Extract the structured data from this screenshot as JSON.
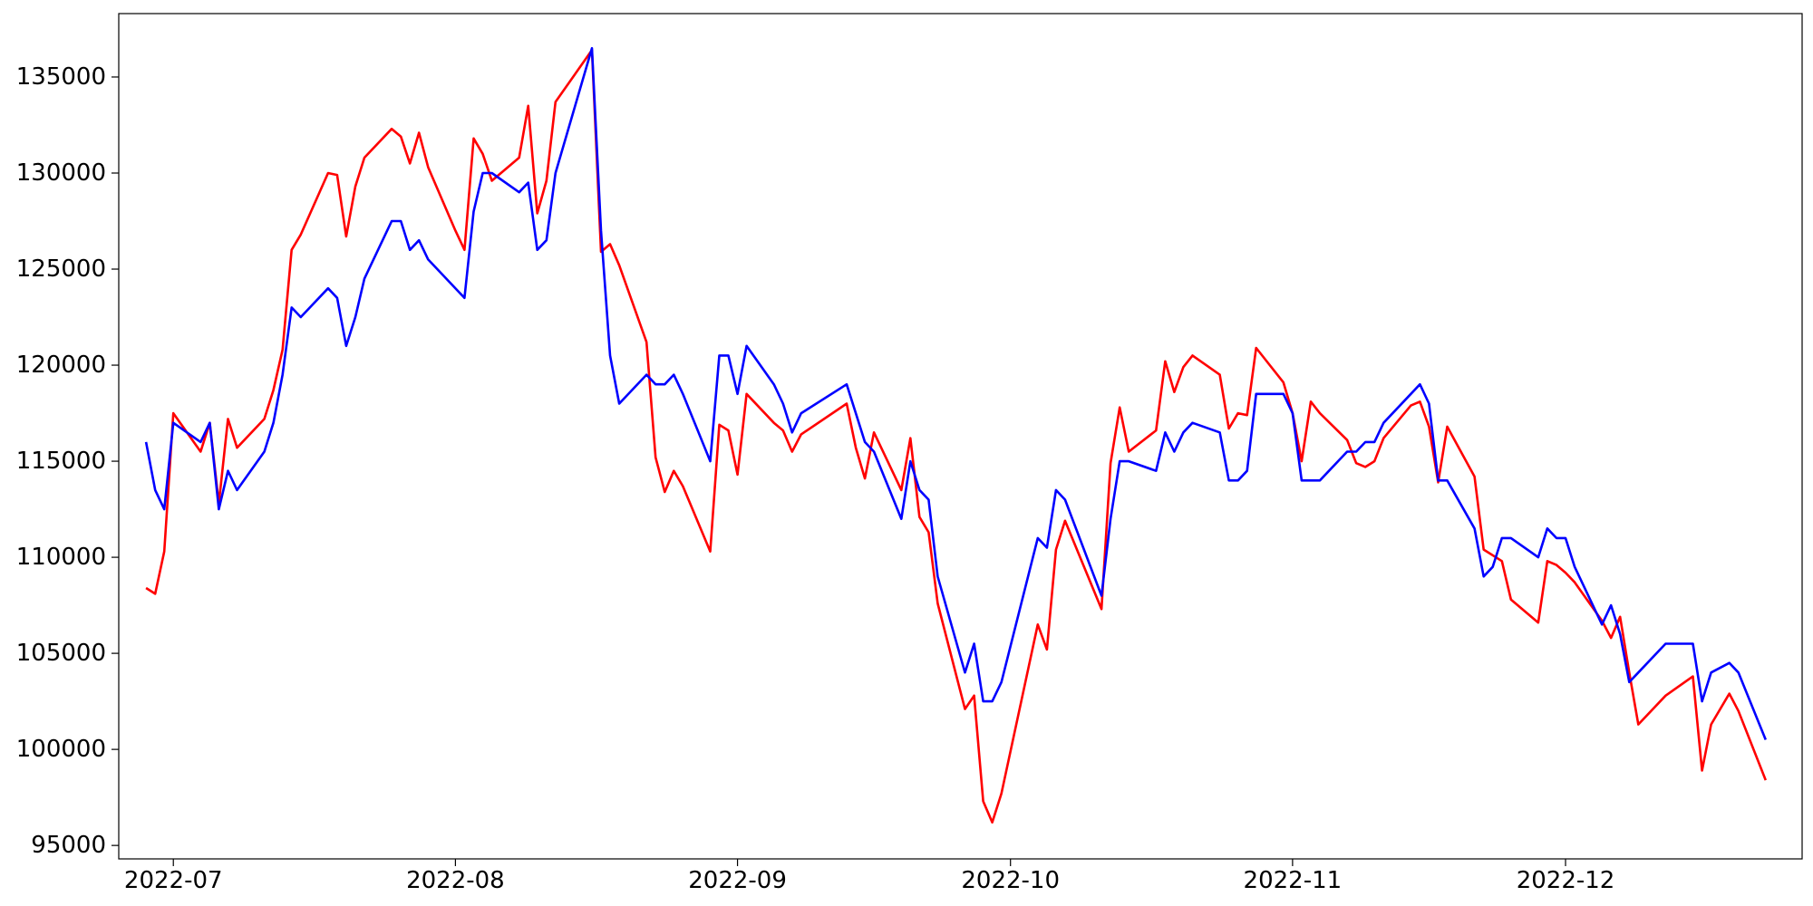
{
  "chart_data": {
    "type": "line",
    "title": "",
    "xlabel": "",
    "ylabel": "",
    "x_ticks": [
      {
        "label": "2022-07",
        "date": "2022-07-01"
      },
      {
        "label": "2022-08",
        "date": "2022-08-01"
      },
      {
        "label": "2022-09",
        "date": "2022-09-01"
      },
      {
        "label": "2022-10",
        "date": "2022-10-01"
      },
      {
        "label": "2022-11",
        "date": "2022-11-01"
      },
      {
        "label": "2022-12",
        "date": "2022-12-01"
      }
    ],
    "y_ticks": [
      95000,
      100000,
      105000,
      110000,
      115000,
      120000,
      125000,
      130000,
      135000
    ],
    "xlim": [
      "2022-06-25",
      "2022-12-27"
    ],
    "ylim": [
      94300,
      138300
    ],
    "grid": false,
    "series": [
      {
        "color": "#ff0000",
        "points": [
          [
            "2022-06-28",
            108400
          ],
          [
            "2022-06-29",
            108100
          ],
          [
            "2022-06-30",
            110300
          ],
          [
            "2022-07-01",
            117500
          ],
          [
            "2022-07-04",
            115500
          ],
          [
            "2022-07-05",
            117000
          ],
          [
            "2022-07-06",
            112800
          ],
          [
            "2022-07-07",
            117200
          ],
          [
            "2022-07-08",
            115700
          ],
          [
            "2022-07-11",
            117200
          ],
          [
            "2022-07-12",
            118700
          ],
          [
            "2022-07-13",
            120800
          ],
          [
            "2022-07-14",
            126000
          ],
          [
            "2022-07-15",
            126800
          ],
          [
            "2022-07-18",
            130000
          ],
          [
            "2022-07-19",
            129900
          ],
          [
            "2022-07-20",
            126700
          ],
          [
            "2022-07-21",
            129300
          ],
          [
            "2022-07-22",
            130800
          ],
          [
            "2022-07-25",
            132300
          ],
          [
            "2022-07-26",
            131900
          ],
          [
            "2022-07-27",
            130500
          ],
          [
            "2022-07-28",
            132100
          ],
          [
            "2022-07-29",
            130300
          ],
          [
            "2022-08-01",
            127000
          ],
          [
            "2022-08-02",
            126000
          ],
          [
            "2022-08-03",
            131800
          ],
          [
            "2022-08-04",
            131000
          ],
          [
            "2022-08-05",
            129600
          ],
          [
            "2022-08-08",
            130800
          ],
          [
            "2022-08-09",
            133500
          ],
          [
            "2022-08-10",
            127900
          ],
          [
            "2022-08-11",
            129600
          ],
          [
            "2022-08-12",
            133700
          ],
          [
            "2022-08-16",
            136400
          ],
          [
            "2022-08-17",
            125900
          ],
          [
            "2022-08-18",
            126300
          ],
          [
            "2022-08-19",
            125200
          ],
          [
            "2022-08-22",
            121200
          ],
          [
            "2022-08-23",
            115200
          ],
          [
            "2022-08-24",
            113400
          ],
          [
            "2022-08-25",
            114500
          ],
          [
            "2022-08-26",
            113700
          ],
          [
            "2022-08-29",
            110300
          ],
          [
            "2022-08-30",
            116900
          ],
          [
            "2022-08-31",
            116600
          ],
          [
            "2022-09-01",
            114300
          ],
          [
            "2022-09-02",
            118500
          ],
          [
            "2022-09-05",
            117000
          ],
          [
            "2022-09-06",
            116600
          ],
          [
            "2022-09-07",
            115500
          ],
          [
            "2022-09-08",
            116400
          ],
          [
            "2022-09-13",
            118000
          ],
          [
            "2022-09-14",
            115700
          ],
          [
            "2022-09-15",
            114100
          ],
          [
            "2022-09-16",
            116500
          ],
          [
            "2022-09-19",
            113500
          ],
          [
            "2022-09-20",
            116200
          ],
          [
            "2022-09-21",
            112100
          ],
          [
            "2022-09-22",
            111300
          ],
          [
            "2022-09-23",
            107600
          ],
          [
            "2022-09-26",
            102100
          ],
          [
            "2022-09-27",
            102800
          ],
          [
            "2022-09-28",
            97300
          ],
          [
            "2022-09-29",
            96200
          ],
          [
            "2022-09-30",
            97700
          ],
          [
            "2022-10-04",
            106500
          ],
          [
            "2022-10-05",
            105200
          ],
          [
            "2022-10-06",
            110400
          ],
          [
            "2022-10-07",
            111900
          ],
          [
            "2022-10-11",
            107300
          ],
          [
            "2022-10-12",
            114900
          ],
          [
            "2022-10-13",
            117800
          ],
          [
            "2022-10-14",
            115500
          ],
          [
            "2022-10-17",
            116600
          ],
          [
            "2022-10-18",
            120200
          ],
          [
            "2022-10-19",
            118600
          ],
          [
            "2022-10-20",
            119900
          ],
          [
            "2022-10-21",
            120500
          ],
          [
            "2022-10-24",
            119500
          ],
          [
            "2022-10-25",
            116700
          ],
          [
            "2022-10-26",
            117500
          ],
          [
            "2022-10-27",
            117400
          ],
          [
            "2022-10-28",
            120900
          ],
          [
            "2022-10-31",
            119100
          ],
          [
            "2022-11-01",
            117500
          ],
          [
            "2022-11-02",
            115000
          ],
          [
            "2022-11-03",
            118100
          ],
          [
            "2022-11-04",
            117500
          ],
          [
            "2022-11-07",
            116100
          ],
          [
            "2022-11-08",
            114900
          ],
          [
            "2022-11-09",
            114700
          ],
          [
            "2022-11-10",
            115000
          ],
          [
            "2022-11-11",
            116200
          ],
          [
            "2022-11-14",
            117900
          ],
          [
            "2022-11-15",
            118100
          ],
          [
            "2022-11-16",
            116800
          ],
          [
            "2022-11-17",
            113900
          ],
          [
            "2022-11-18",
            116800
          ],
          [
            "2022-11-21",
            114200
          ],
          [
            "2022-11-22",
            110400
          ],
          [
            "2022-11-24",
            109800
          ],
          [
            "2022-11-25",
            107800
          ],
          [
            "2022-11-28",
            106600
          ],
          [
            "2022-11-29",
            109800
          ],
          [
            "2022-11-30",
            109600
          ],
          [
            "2022-12-01",
            109200
          ],
          [
            "2022-12-02",
            108700
          ],
          [
            "2022-12-05",
            106700
          ],
          [
            "2022-12-06",
            105800
          ],
          [
            "2022-12-07",
            106900
          ],
          [
            "2022-12-08",
            104000
          ],
          [
            "2022-12-09",
            101300
          ],
          [
            "2022-12-12",
            102800
          ],
          [
            "2022-12-15",
            103800
          ],
          [
            "2022-12-16",
            98900
          ],
          [
            "2022-12-17",
            101300
          ],
          [
            "2022-12-19",
            102900
          ],
          [
            "2022-12-20",
            102000
          ],
          [
            "2022-12-23",
            98400
          ]
        ]
      },
      {
        "color": "#0000ff",
        "points": [
          [
            "2022-06-28",
            116000
          ],
          [
            "2022-06-29",
            113500
          ],
          [
            "2022-06-30",
            112500
          ],
          [
            "2022-07-01",
            117000
          ],
          [
            "2022-07-04",
            116000
          ],
          [
            "2022-07-05",
            117000
          ],
          [
            "2022-07-06",
            112500
          ],
          [
            "2022-07-07",
            114500
          ],
          [
            "2022-07-08",
            113500
          ],
          [
            "2022-07-11",
            115500
          ],
          [
            "2022-07-12",
            117000
          ],
          [
            "2022-07-13",
            119500
          ],
          [
            "2022-07-14",
            123000
          ],
          [
            "2022-07-15",
            122500
          ],
          [
            "2022-07-18",
            124000
          ],
          [
            "2022-07-19",
            123500
          ],
          [
            "2022-07-20",
            121000
          ],
          [
            "2022-07-21",
            122500
          ],
          [
            "2022-07-22",
            124500
          ],
          [
            "2022-07-25",
            127500
          ],
          [
            "2022-07-26",
            127500
          ],
          [
            "2022-07-27",
            126000
          ],
          [
            "2022-07-28",
            126500
          ],
          [
            "2022-07-29",
            125500
          ],
          [
            "2022-08-02",
            123500
          ],
          [
            "2022-08-03",
            128000
          ],
          [
            "2022-08-04",
            130000
          ],
          [
            "2022-08-05",
            130000
          ],
          [
            "2022-08-08",
            129000
          ],
          [
            "2022-08-09",
            129500
          ],
          [
            "2022-08-10",
            126000
          ],
          [
            "2022-08-11",
            126500
          ],
          [
            "2022-08-12",
            130000
          ],
          [
            "2022-08-16",
            136500
          ],
          [
            "2022-08-17",
            127000
          ],
          [
            "2022-08-18",
            120500
          ],
          [
            "2022-08-19",
            118000
          ],
          [
            "2022-08-22",
            119500
          ],
          [
            "2022-08-23",
            119000
          ],
          [
            "2022-08-24",
            119000
          ],
          [
            "2022-08-25",
            119500
          ],
          [
            "2022-08-26",
            118500
          ],
          [
            "2022-08-29",
            115000
          ],
          [
            "2022-08-30",
            120500
          ],
          [
            "2022-08-31",
            120500
          ],
          [
            "2022-09-01",
            118500
          ],
          [
            "2022-09-02",
            121000
          ],
          [
            "2022-09-05",
            119000
          ],
          [
            "2022-09-06",
            118000
          ],
          [
            "2022-09-07",
            116500
          ],
          [
            "2022-09-08",
            117500
          ],
          [
            "2022-09-13",
            119000
          ],
          [
            "2022-09-14",
            117500
          ],
          [
            "2022-09-15",
            116000
          ],
          [
            "2022-09-16",
            115500
          ],
          [
            "2022-09-19",
            112000
          ],
          [
            "2022-09-20",
            115000
          ],
          [
            "2022-09-21",
            113500
          ],
          [
            "2022-09-22",
            113000
          ],
          [
            "2022-09-23",
            109000
          ],
          [
            "2022-09-26",
            104000
          ],
          [
            "2022-09-27",
            105500
          ],
          [
            "2022-09-28",
            102500
          ],
          [
            "2022-09-29",
            102500
          ],
          [
            "2022-09-30",
            103500
          ],
          [
            "2022-10-04",
            111000
          ],
          [
            "2022-10-05",
            110500
          ],
          [
            "2022-10-06",
            113500
          ],
          [
            "2022-10-07",
            113000
          ],
          [
            "2022-10-11",
            108000
          ],
          [
            "2022-10-12",
            112000
          ],
          [
            "2022-10-13",
            115000
          ],
          [
            "2022-10-14",
            115000
          ],
          [
            "2022-10-17",
            114500
          ],
          [
            "2022-10-18",
            116500
          ],
          [
            "2022-10-19",
            115500
          ],
          [
            "2022-10-20",
            116500
          ],
          [
            "2022-10-21",
            117000
          ],
          [
            "2022-10-24",
            116500
          ],
          [
            "2022-10-25",
            114000
          ],
          [
            "2022-10-26",
            114000
          ],
          [
            "2022-10-27",
            114500
          ],
          [
            "2022-10-28",
            118500
          ],
          [
            "2022-10-31",
            118500
          ],
          [
            "2022-11-01",
            117500
          ],
          [
            "2022-11-02",
            114000
          ],
          [
            "2022-11-03",
            114000
          ],
          [
            "2022-11-04",
            114000
          ],
          [
            "2022-11-07",
            115500
          ],
          [
            "2022-11-08",
            115500
          ],
          [
            "2022-11-09",
            116000
          ],
          [
            "2022-11-10",
            116000
          ],
          [
            "2022-11-11",
            117000
          ],
          [
            "2022-11-15",
            119000
          ],
          [
            "2022-11-16",
            118000
          ],
          [
            "2022-11-17",
            114000
          ],
          [
            "2022-11-18",
            114000
          ],
          [
            "2022-11-21",
            111500
          ],
          [
            "2022-11-22",
            109000
          ],
          [
            "2022-11-23",
            109500
          ],
          [
            "2022-11-24",
            111000
          ],
          [
            "2022-11-25",
            111000
          ],
          [
            "2022-11-28",
            110000
          ],
          [
            "2022-11-29",
            111500
          ],
          [
            "2022-11-30",
            111000
          ],
          [
            "2022-12-01",
            111000
          ],
          [
            "2022-12-02",
            109500
          ],
          [
            "2022-12-05",
            106500
          ],
          [
            "2022-12-06",
            107500
          ],
          [
            "2022-12-07",
            106000
          ],
          [
            "2022-12-08",
            103500
          ],
          [
            "2022-12-09",
            104000
          ],
          [
            "2022-12-12",
            105500
          ],
          [
            "2022-12-15",
            105500
          ],
          [
            "2022-12-16",
            102500
          ],
          [
            "2022-12-17",
            104000
          ],
          [
            "2022-12-19",
            104500
          ],
          [
            "2022-12-20",
            104000
          ],
          [
            "2022-12-23",
            100500
          ]
        ]
      }
    ]
  }
}
